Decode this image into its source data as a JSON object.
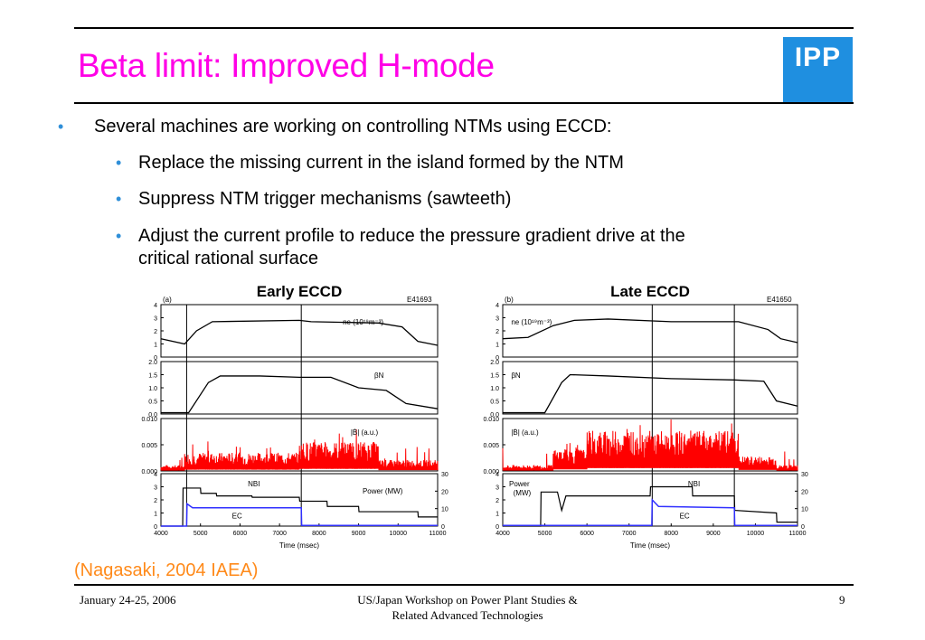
{
  "slide": {
    "title": "Beta limit: Improved H-mode",
    "logo_text": "IPP",
    "bullets": [
      "Several machines are working on controlling NTMs using ECCD:",
      "Replace the missing current in the island formed by the NTM",
      "Suppress NTM trigger mechanisms (sawteeth)",
      "Adjust the current profile to reduce the pressure gradient drive at the",
      "critical rational surface"
    ],
    "citation": "(Nagasaki, 2004 IAEA)",
    "footer": {
      "date": "January 24-25, 2006",
      "workshop_line1": "US/Japan Workshop on Power Plant Studies &",
      "workshop_line2": "Related Advanced Technologies",
      "page": "9"
    }
  },
  "colors": {
    "title": "#ff00e6",
    "logo_bg": "#1f8fe0",
    "bullet": "#2f8fd8",
    "citation": "#ff8a1a",
    "mhd_trace": "#ff0000",
    "ec_trace": "#3030ff"
  },
  "figures": {
    "left": {
      "title": "Early ECCD",
      "tag": "(a)",
      "shot": "E41693",
      "labels": {
        "ne": "n",
        "ne_sub": "e",
        "ne_unit": " (10¹⁹m⁻³)",
        "beta": "β",
        "beta_sub": "N",
        "bdot": "|Ḃ| (a.u.)",
        "nbi": "NBI",
        "power": "Power (MW)",
        "ec": "EC",
        "xlabel": "Time (msec)"
      },
      "xticks": [
        "4000",
        "5000",
        "6000",
        "7000",
        "8000",
        "9000",
        "10000",
        "11000"
      ],
      "ne_ticks": [
        "4",
        "3",
        "2",
        "1",
        "0"
      ],
      "beta_ticks": [
        "2.0",
        "1.5",
        "1.0",
        "0.5",
        "0.0"
      ],
      "bdot_ticks": [
        "0.010",
        "0.005",
        "0.000"
      ],
      "p_ticks": [
        "4",
        "3",
        "2",
        "1",
        "0"
      ],
      "p_right_ticks": [
        "30",
        "20",
        "10",
        "0"
      ]
    },
    "right": {
      "title": "Late ECCD",
      "tag": "(b)",
      "shot": "E41650",
      "labels": {
        "ne": "n",
        "ne_sub": "e",
        "ne_unit": " (10¹⁹m⁻³)",
        "beta": "β",
        "beta_sub": "N",
        "bdot": "|Ḃ| (a.u.)",
        "nbi": "NBI",
        "power": "Power",
        "power2": "(MW)",
        "ec": "EC",
        "xlabel": "Time (msec)"
      },
      "xticks": [
        "4000",
        "5000",
        "6000",
        "7000",
        "8000",
        "9000",
        "10000",
        "11000"
      ],
      "ne_ticks": [
        "4",
        "3",
        "2",
        "1",
        "0"
      ],
      "beta_ticks": [
        "2.0",
        "1.5",
        "1.0",
        "0.5",
        "0.0"
      ],
      "bdot_ticks": [
        "0.010",
        "0.005",
        "0.000"
      ],
      "p_ticks": [
        "4",
        "3",
        "2",
        "1",
        "0"
      ],
      "p_right_ticks": [
        "30",
        "20",
        "10",
        "0"
      ]
    }
  }
}
